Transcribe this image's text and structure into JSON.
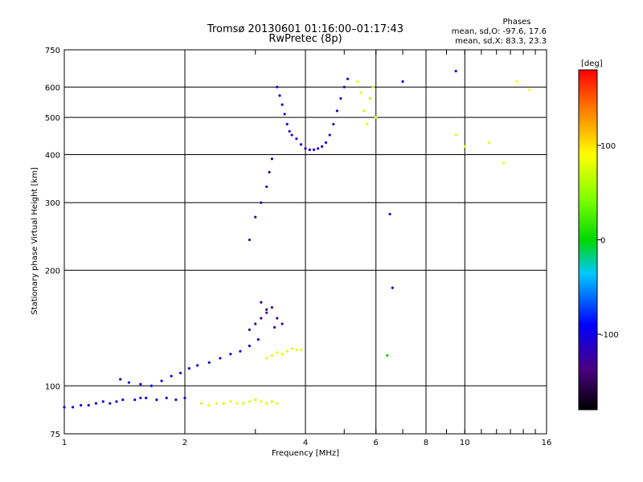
{
  "header": {
    "title_line1": "Tromsø 20130601 01:16:00–01:17:43",
    "title_line2": "RwPretec (8p)",
    "phase_title": "Phases",
    "phase_line1": "mean, sd,O: -97.6, 17.6",
    "phase_line2": "mean, sd,X: 83.3, 23.3"
  },
  "colorbar": {
    "label": "[deg]",
    "ticks": [
      {
        "value": 100,
        "label": "100"
      },
      {
        "value": 0,
        "label": "0"
      },
      {
        "value": -100,
        "label": "-100"
      }
    ],
    "range": [
      -180,
      180
    ]
  },
  "chart_data": {
    "type": "scatter",
    "title": "Tromsø 20130601 01:16:00–01:17:43",
    "subtitle": "RwPretec (8p)",
    "xlabel": "Frequency [MHz]",
    "ylabel": "Stationary phase Virtual Height [km]",
    "xscale": "log",
    "yscale": "log",
    "xlim": [
      1,
      16
    ],
    "ylim": [
      75,
      750
    ],
    "xticks": [
      1,
      2,
      4,
      6,
      8,
      10,
      16
    ],
    "yticks": [
      75,
      100,
      200,
      300,
      400,
      500,
      600,
      750
    ],
    "grid": true,
    "color_by": "phase (deg)",
    "series": [
      {
        "points": [
          [
            1.0,
            88,
            -100
          ],
          [
            1.05,
            88,
            -100
          ],
          [
            1.1,
            89,
            -100
          ],
          [
            1.15,
            89,
            -100
          ],
          [
            1.2,
            90,
            -100
          ],
          [
            1.25,
            91,
            -100
          ],
          [
            1.3,
            90,
            -100
          ],
          [
            1.35,
            91,
            -100
          ],
          [
            1.4,
            92,
            -100
          ],
          [
            1.5,
            92,
            -100
          ],
          [
            1.55,
            93,
            -100
          ],
          [
            1.6,
            93,
            -100
          ],
          [
            1.7,
            92,
            -100
          ],
          [
            1.8,
            93,
            -100
          ],
          [
            1.9,
            92,
            -100
          ],
          [
            2.0,
            93,
            -100
          ],
          [
            1.38,
            104,
            -100
          ],
          [
            1.45,
            102,
            -100
          ],
          [
            1.55,
            101,
            -100
          ],
          [
            1.65,
            100,
            -100
          ],
          [
            1.75,
            103,
            -100
          ],
          [
            1.85,
            106,
            -100
          ],
          [
            1.95,
            108,
            -100
          ],
          [
            2.05,
            111,
            -100
          ],
          [
            2.15,
            113,
            -100
          ],
          [
            2.3,
            115,
            -100
          ],
          [
            2.45,
            118,
            -100
          ],
          [
            2.6,
            121,
            -100
          ],
          [
            2.75,
            123,
            -100
          ],
          [
            2.9,
            127,
            -100
          ],
          [
            3.05,
            132,
            -100
          ],
          [
            2.9,
            140,
            -120
          ],
          [
            3.0,
            145,
            -120
          ],
          [
            3.1,
            150,
            -130
          ],
          [
            3.2,
            155,
            -130
          ],
          [
            3.3,
            160,
            -140
          ],
          [
            3.4,
            150,
            -130
          ],
          [
            3.5,
            145,
            -120
          ],
          [
            3.1,
            165,
            -130
          ],
          [
            3.2,
            158,
            -140
          ],
          [
            3.35,
            142,
            -120
          ],
          [
            2.2,
            90,
            70
          ],
          [
            2.3,
            89,
            80
          ],
          [
            2.4,
            90,
            80
          ],
          [
            2.5,
            90,
            70
          ],
          [
            2.6,
            91,
            80
          ],
          [
            2.7,
            90,
            80
          ],
          [
            2.8,
            90,
            70
          ],
          [
            2.9,
            91,
            80
          ],
          [
            3.0,
            92,
            70
          ],
          [
            3.1,
            91,
            80
          ],
          [
            3.2,
            90,
            80
          ],
          [
            3.3,
            91,
            70
          ],
          [
            3.4,
            90,
            80
          ],
          [
            3.2,
            118,
            80
          ],
          [
            3.3,
            120,
            80
          ],
          [
            3.4,
            122,
            80
          ],
          [
            3.5,
            121,
            80
          ],
          [
            3.6,
            123,
            80
          ],
          [
            3.7,
            125,
            80
          ],
          [
            3.8,
            124,
            80
          ],
          [
            3.9,
            124,
            80
          ],
          [
            3.4,
            600,
            -110
          ],
          [
            3.45,
            570,
            -110
          ],
          [
            3.5,
            540,
            -110
          ],
          [
            3.55,
            510,
            -110
          ],
          [
            3.6,
            480,
            -110
          ],
          [
            3.65,
            460,
            -110
          ],
          [
            3.7,
            450,
            -110
          ],
          [
            3.8,
            440,
            -110
          ],
          [
            3.9,
            425,
            -110
          ],
          [
            4.0,
            415,
            -110
          ],
          [
            4.1,
            412,
            -110
          ],
          [
            4.2,
            412,
            -110
          ],
          [
            4.3,
            415,
            -110
          ],
          [
            4.4,
            420,
            -110
          ],
          [
            4.5,
            430,
            -110
          ],
          [
            4.6,
            450,
            -110
          ],
          [
            4.7,
            480,
            -110
          ],
          [
            4.8,
            520,
            -110
          ],
          [
            4.9,
            560,
            -110
          ],
          [
            5.0,
            600,
            -110
          ],
          [
            5.1,
            630,
            -110
          ],
          [
            3.3,
            390,
            -120
          ],
          [
            3.25,
            360,
            -120
          ],
          [
            3.2,
            330,
            -120
          ],
          [
            3.1,
            300,
            -120
          ],
          [
            3.0,
            275,
            -120
          ],
          [
            2.9,
            240,
            -120
          ],
          [
            5.4,
            620,
            80
          ],
          [
            5.5,
            580,
            80
          ],
          [
            5.6,
            520,
            70
          ],
          [
            5.7,
            480,
            80
          ],
          [
            5.8,
            560,
            60
          ],
          [
            5.9,
            600,
            70
          ],
          [
            6.0,
            500,
            80
          ],
          [
            6.4,
            120,
            0
          ],
          [
            6.5,
            280,
            -100
          ],
          [
            6.6,
            180,
            -100
          ],
          [
            7.0,
            620,
            -100
          ],
          [
            9.5,
            660,
            -100
          ],
          [
            9.5,
            450,
            80
          ],
          [
            10.0,
            420,
            80
          ],
          [
            11.5,
            430,
            80
          ],
          [
            12.5,
            380,
            80
          ],
          [
            13.5,
            620,
            90
          ],
          [
            14.5,
            590,
            90
          ]
        ]
      }
    ]
  }
}
